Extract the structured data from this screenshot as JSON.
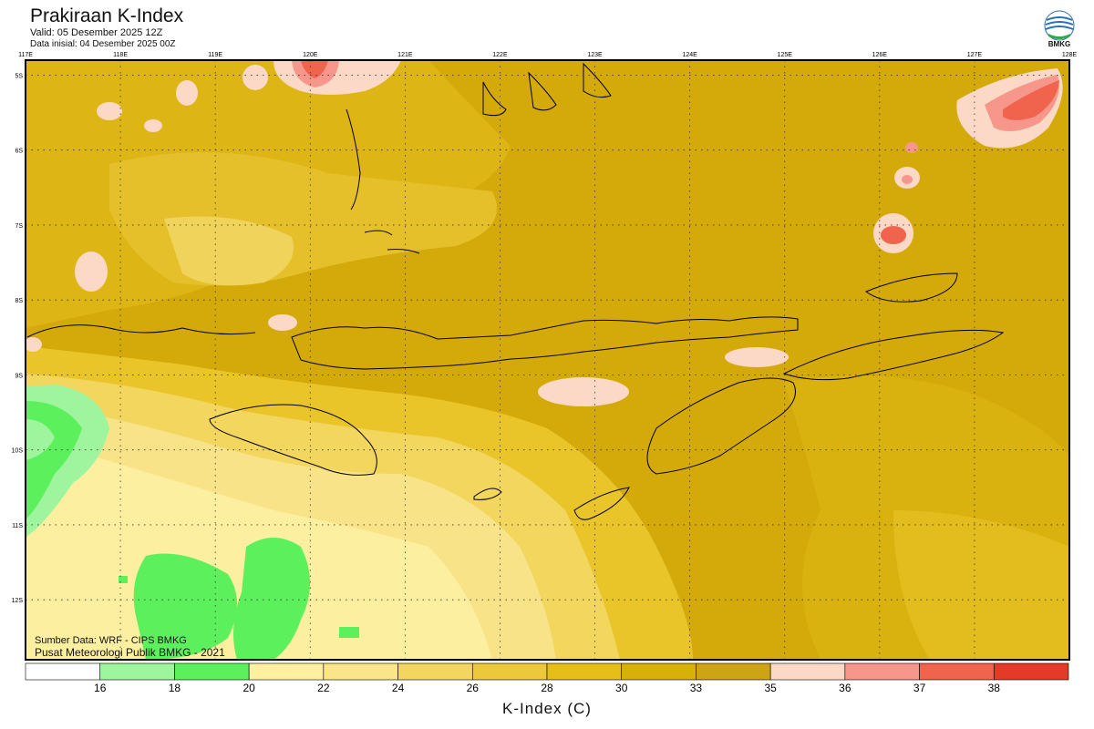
{
  "header": {
    "title": "Prakiraan K-Index",
    "valid": "Valid: 05 Desember 2025 12Z",
    "initial": "Data inisial: 04 Desember 2025 00Z"
  },
  "logo": {
    "text": "BMKG",
    "icon": "bmkg-logo-icon"
  },
  "map": {
    "lon_labels": [
      "117E",
      "118E",
      "119E",
      "120E",
      "121E",
      "122E",
      "123E",
      "124E",
      "125E",
      "126E",
      "127E",
      "128E"
    ],
    "lat_labels": [
      "5S",
      "6S",
      "7S",
      "8S",
      "9S",
      "10S",
      "11S",
      "12S"
    ],
    "lon_range": [
      117,
      128
    ],
    "lat_range": [
      -4.8,
      -12.8
    ],
    "grid": true,
    "background_color": "#d4a90a"
  },
  "credits": {
    "source": "Sumber Data: WRF - CIPS BMKG",
    "org": "Pusat Meteorologi Publik BMKG - 2021"
  },
  "legend": {
    "title": "K-Index (C)",
    "ticks": [
      "16",
      "18",
      "20",
      "22",
      "24",
      "26",
      "28",
      "30",
      "33",
      "35",
      "36",
      "37",
      "38"
    ],
    "colors": [
      "#ffffff",
      "#9ef59e",
      "#5cf05c",
      "#fdf0a0",
      "#fae58a",
      "#f3d660",
      "#ecc93b",
      "#e5be1a",
      "#d8b00a",
      "#cda413",
      "#fcd8c6",
      "#f7968a",
      "#f0644e",
      "#e33a2a"
    ]
  }
}
